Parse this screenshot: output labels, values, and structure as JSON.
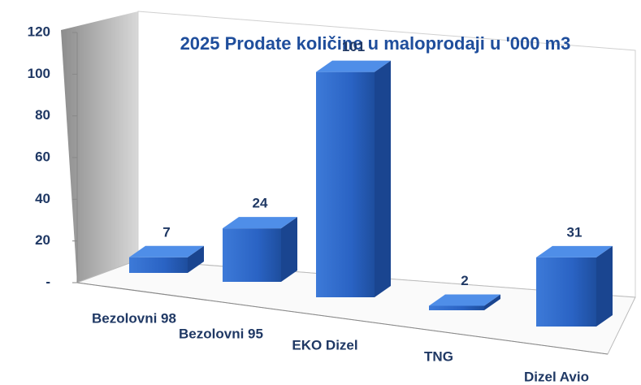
{
  "chart_data": {
    "type": "bar3d",
    "title": "2025 Prodate količine u maloprodaji u  '000 m3",
    "categories": [
      "Bezolovni 98",
      "Bezolovni 95",
      "EKO Dizel",
      "TNG",
      "Dizel Avio"
    ],
    "values": [
      7,
      24,
      101,
      2,
      31
    ],
    "color": "#2a63c4",
    "ylim": [
      0,
      120
    ],
    "yticks": [
      {
        "value": 0,
        "label": "-"
      },
      20,
      40,
      60,
      80,
      100,
      120
    ]
  }
}
